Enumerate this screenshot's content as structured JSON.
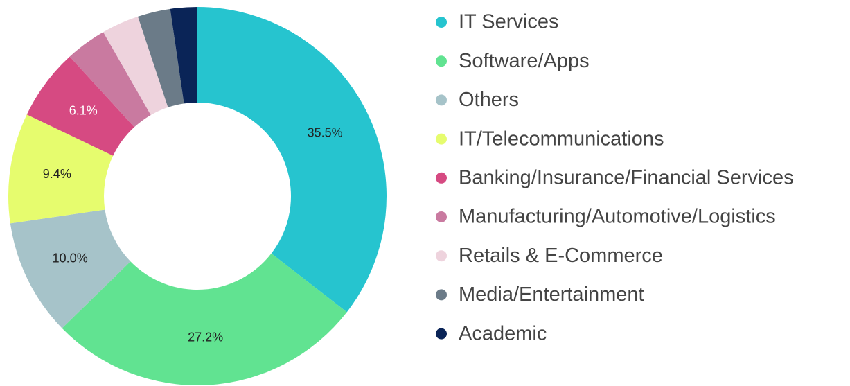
{
  "chart_data": {
    "type": "donut",
    "categories": [
      "IT Services",
      "Software/Apps",
      "Others",
      "IT/Telecommunications",
      "Banking/Insurance/Financial Services",
      "Manufacturing/Automotive/Logistics",
      "Retails & E-Commerce",
      "Media/Entertainment",
      "Academic"
    ],
    "values": [
      35.5,
      27.2,
      10.0,
      9.4,
      6.1,
      3.5,
      3.2,
      2.8,
      2.3
    ],
    "value_labels": [
      "35.5%",
      "27.2%",
      "10.0%",
      "9.4%",
      "6.1%",
      null,
      null,
      null,
      null
    ],
    "colors": [
      "#26c4cf",
      "#61e391",
      "#a6c3c9",
      "#e6fc6e",
      "#d64a82",
      "#c97aa0",
      "#eed3dd",
      "#6b7b88",
      "#0a2457"
    ],
    "legend": "right"
  }
}
